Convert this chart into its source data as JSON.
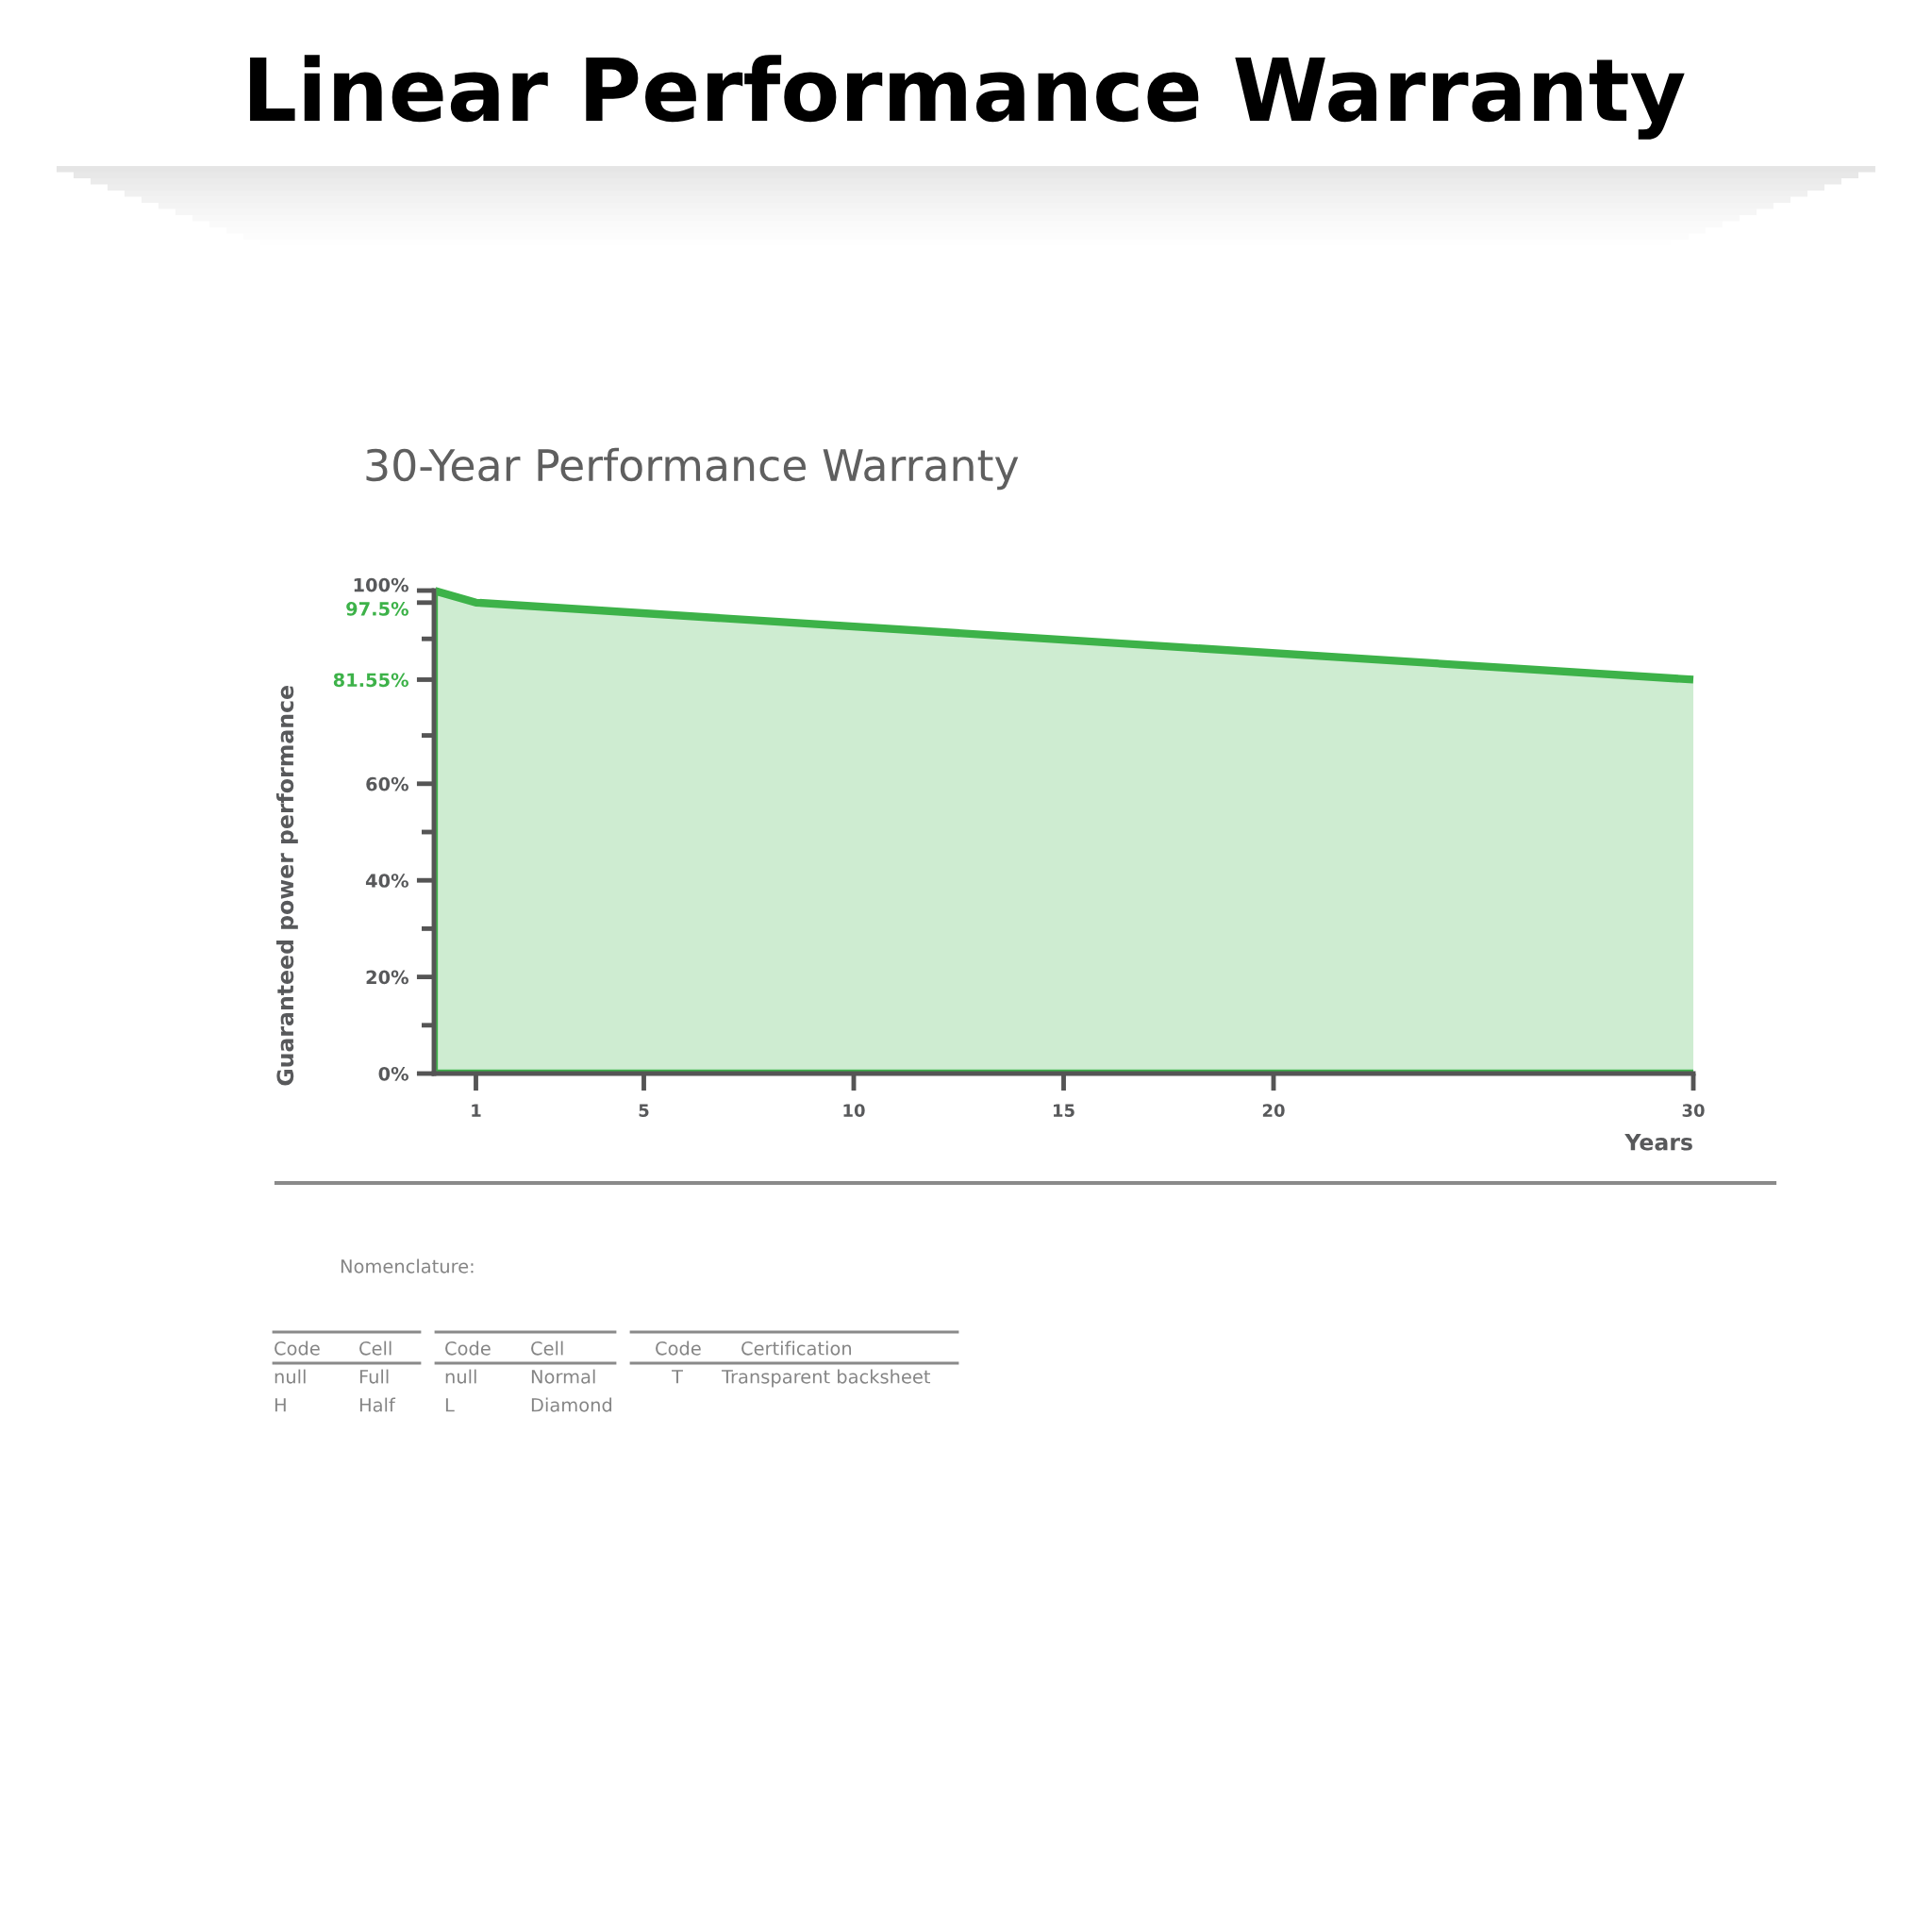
{
  "chart_data": {
    "type": "area",
    "title": "Linear Performance Warranty",
    "subtitle": "30-Year Performance Warranty",
    "xlabel": "Years",
    "ylabel": "Guaranteed power performance",
    "x": [
      0,
      1,
      30
    ],
    "series": [
      {
        "color": "#3db249",
        "values": [
          100,
          97.5,
          81.55
        ]
      }
    ],
    "xlim": [
      0,
      30
    ],
    "xticks": [
      1,
      5,
      10,
      15,
      20,
      30
    ],
    "ylim": [
      0,
      100
    ],
    "yticks": [
      {
        "value": 0,
        "label": "0%"
      },
      {
        "value": 10,
        "label": null
      },
      {
        "value": 20,
        "label": "20%"
      },
      {
        "value": 30,
        "label": null
      },
      {
        "value": 40,
        "label": "40%"
      },
      {
        "value": 50,
        "label": null
      },
      {
        "value": 60,
        "label": "60%"
      },
      {
        "value": 70,
        "label": null
      },
      {
        "value": 81.55,
        "label": "81.55%"
      },
      {
        "value": 90,
        "label": null
      },
      {
        "value": 97.5,
        "label": "97.5%"
      },
      {
        "value": 100,
        "label": "100%"
      }
    ],
    "annotations": [
      "Nomenclature:",
      "Code",
      "Cell",
      "null",
      "Full",
      "H",
      "Half",
      "Code",
      "Cell",
      "null",
      "Normal",
      "L",
      "Diamond",
      "Code",
      "Certification",
      "T",
      "Transparent backsheet"
    ]
  }
}
